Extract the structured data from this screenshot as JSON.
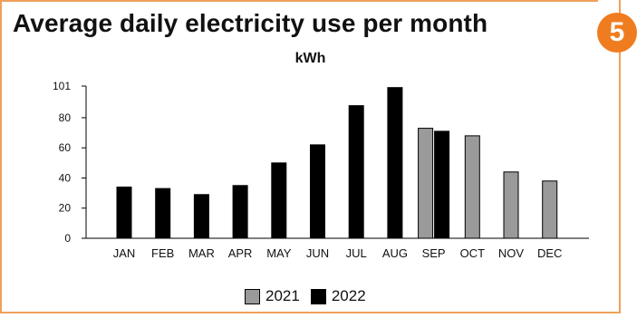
{
  "header": {
    "title": "Average daily electricity use per month",
    "badge": "5"
  },
  "chart_data": {
    "type": "bar",
    "title": "Average daily electricity use per month",
    "unit_label": "kWh",
    "xlabel": "",
    "ylabel": "kWh",
    "ylim": [
      0,
      101
    ],
    "yticks": [
      "101",
      "80",
      "60",
      "40",
      "20",
      "0"
    ],
    "grid": false,
    "legend_placement": "bottom",
    "categories": [
      "JAN",
      "FEB",
      "MAR",
      "APR",
      "MAY",
      "JUN",
      "JUL",
      "AUG",
      "SEP",
      "OCT",
      "NOV",
      "DEC"
    ],
    "series": [
      {
        "name": "2021",
        "color": "#9a9a9a",
        "values": [
          null,
          null,
          null,
          null,
          null,
          null,
          null,
          null,
          73,
          68,
          44,
          38
        ]
      },
      {
        "name": "2022",
        "color": "#000000",
        "values": [
          34,
          33,
          29,
          35,
          50,
          62,
          88,
          100,
          71,
          null,
          null,
          null
        ]
      }
    ]
  }
}
